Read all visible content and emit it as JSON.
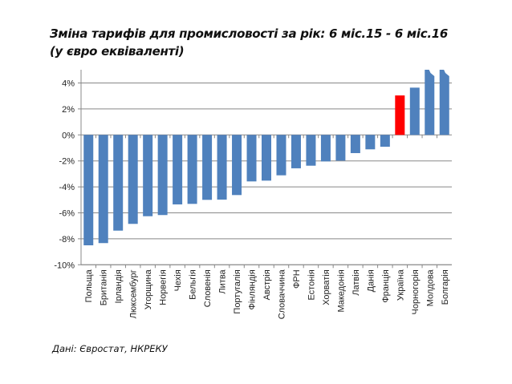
{
  "page": {
    "title_line1": "Зміна тарифів для промисловості за рік: 6 міс.15  -  6 міс.16",
    "title_line2": "(у євро еквіваленті)",
    "source": "Дані: Євростат, НКРЕКУ"
  },
  "chart_data": {
    "type": "bar",
    "title": "Зміна тарифів для промисловості за рік: 6 міс.15 - 6 міс.16 (у євро еквіваленті)",
    "xlabel": "",
    "ylabel": "",
    "ylim": [
      -10,
      4
    ],
    "yticks": [
      4,
      2,
      0,
      -2,
      -4,
      -6,
      -8,
      -10
    ],
    "ytick_labels": [
      "4%",
      "2%",
      "0%",
      "-2%",
      "-4%",
      "-6%",
      "-8%",
      "-10%"
    ],
    "grid": true,
    "legend": "none",
    "colors": {
      "default": "#4F81BD",
      "highlight": "#FF0000"
    },
    "categories": [
      "Польща",
      "Британія",
      "Ірландія",
      "Люксембург",
      "Угорщина",
      "Норвегія",
      "Чехія",
      "Бельгія",
      "Словенія",
      "Литва",
      "Португалія",
      "Фінляндія",
      "Австрія",
      "Словаччина",
      "ФРН",
      "Естонія",
      "Хорватія",
      "Македонія",
      "Латвія",
      "Данія",
      "Франція",
      "Україна",
      "Чорногорія",
      "Молдова",
      "Болгарія"
    ],
    "values": [
      -8.5,
      -8.33,
      -7.37,
      -6.85,
      -6.26,
      -6.17,
      -5.35,
      -5.31,
      -5.0,
      -4.98,
      -4.63,
      -3.58,
      -3.52,
      -3.11,
      -2.57,
      -2.37,
      -2.04,
      -1.98,
      -1.4,
      -1.11,
      -0.91,
      3.04,
      3.64,
      5.0,
      5.0
    ],
    "off_scale": [
      false,
      false,
      false,
      false,
      false,
      false,
      false,
      false,
      false,
      false,
      false,
      false,
      false,
      false,
      false,
      false,
      false,
      false,
      false,
      false,
      false,
      false,
      false,
      true,
      true
    ],
    "highlight": [
      "Україна"
    ]
  }
}
